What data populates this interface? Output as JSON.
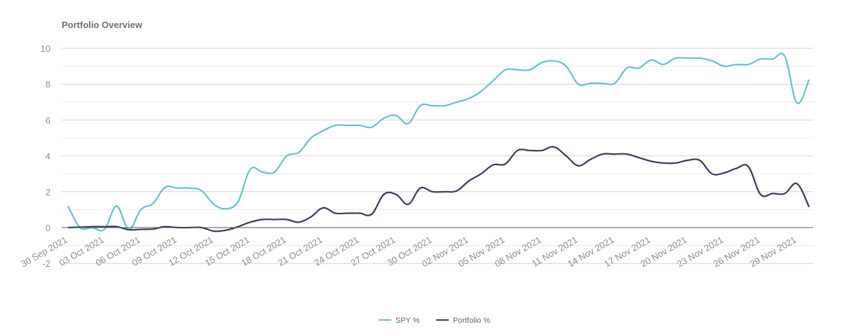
{
  "chart_data": {
    "type": "line",
    "title": "Portfolio Overview",
    "xlabel": "",
    "ylabel": "",
    "ylim": [
      -2,
      10
    ],
    "yticks": [
      -2,
      0,
      2,
      4,
      6,
      8,
      10
    ],
    "grid": true,
    "legend_position": "bottom-center",
    "start_date": "30 Sep 2021",
    "x_tick_labels": [
      "30 Sep 2021",
      "03 Oct 2021",
      "06 Oct 2021",
      "09 Oct 2021",
      "12 Oct 2021",
      "15 Oct 2021",
      "18 Oct 2021",
      "21 Oct 2021",
      "24 Oct 2021",
      "27 Oct 2021",
      "30 Oct 2021",
      "02 Nov 2021",
      "05 Nov 2021",
      "08 Nov 2021",
      "11 Nov 2021",
      "14 Nov 2021",
      "17 Nov 2021",
      "20 Nov 2021",
      "23 Nov 2021",
      "26 Nov 2021",
      "29 Nov 2021"
    ],
    "series": [
      {
        "name": "SPY %",
        "color": "#64c1d1",
        "values": [
          1.2,
          0.0,
          0.0,
          -0.1,
          1.2,
          -0.1,
          1.0,
          1.35,
          2.25,
          2.2,
          2.2,
          2.05,
          1.3,
          1.05,
          1.45,
          3.25,
          3.1,
          3.1,
          4.0,
          4.2,
          5.0,
          5.4,
          5.7,
          5.7,
          5.7,
          5.6,
          6.1,
          6.25,
          5.8,
          6.8,
          6.8,
          6.8,
          7.0,
          7.2,
          7.6,
          8.2,
          8.8,
          8.8,
          8.8,
          9.2,
          9.3,
          9.0,
          8.0,
          8.05,
          8.05,
          8.05,
          8.9,
          8.9,
          9.35,
          9.1,
          9.45,
          9.45,
          9.45,
          9.3,
          9.0,
          9.1,
          9.1,
          9.4,
          9.4,
          9.55,
          6.95,
          8.25
        ]
      },
      {
        "name": "Portfolio %",
        "color": "#363b5e",
        "values": [
          0.0,
          0.02,
          0.05,
          0.05,
          0.05,
          -0.12,
          -0.1,
          -0.08,
          0.05,
          0.0,
          0.0,
          0.0,
          -0.2,
          -0.15,
          0.05,
          0.3,
          0.45,
          0.45,
          0.45,
          0.3,
          0.6,
          1.1,
          0.8,
          0.8,
          0.8,
          0.75,
          1.85,
          1.85,
          1.3,
          2.2,
          2.0,
          2.0,
          2.05,
          2.6,
          3.0,
          3.5,
          3.55,
          4.3,
          4.3,
          4.3,
          4.5,
          4.0,
          3.45,
          3.8,
          4.1,
          4.1,
          4.1,
          3.9,
          3.7,
          3.6,
          3.6,
          3.75,
          3.75,
          3.0,
          3.05,
          3.3,
          3.4,
          1.85,
          1.9,
          1.9,
          2.45,
          1.15
        ]
      }
    ]
  }
}
